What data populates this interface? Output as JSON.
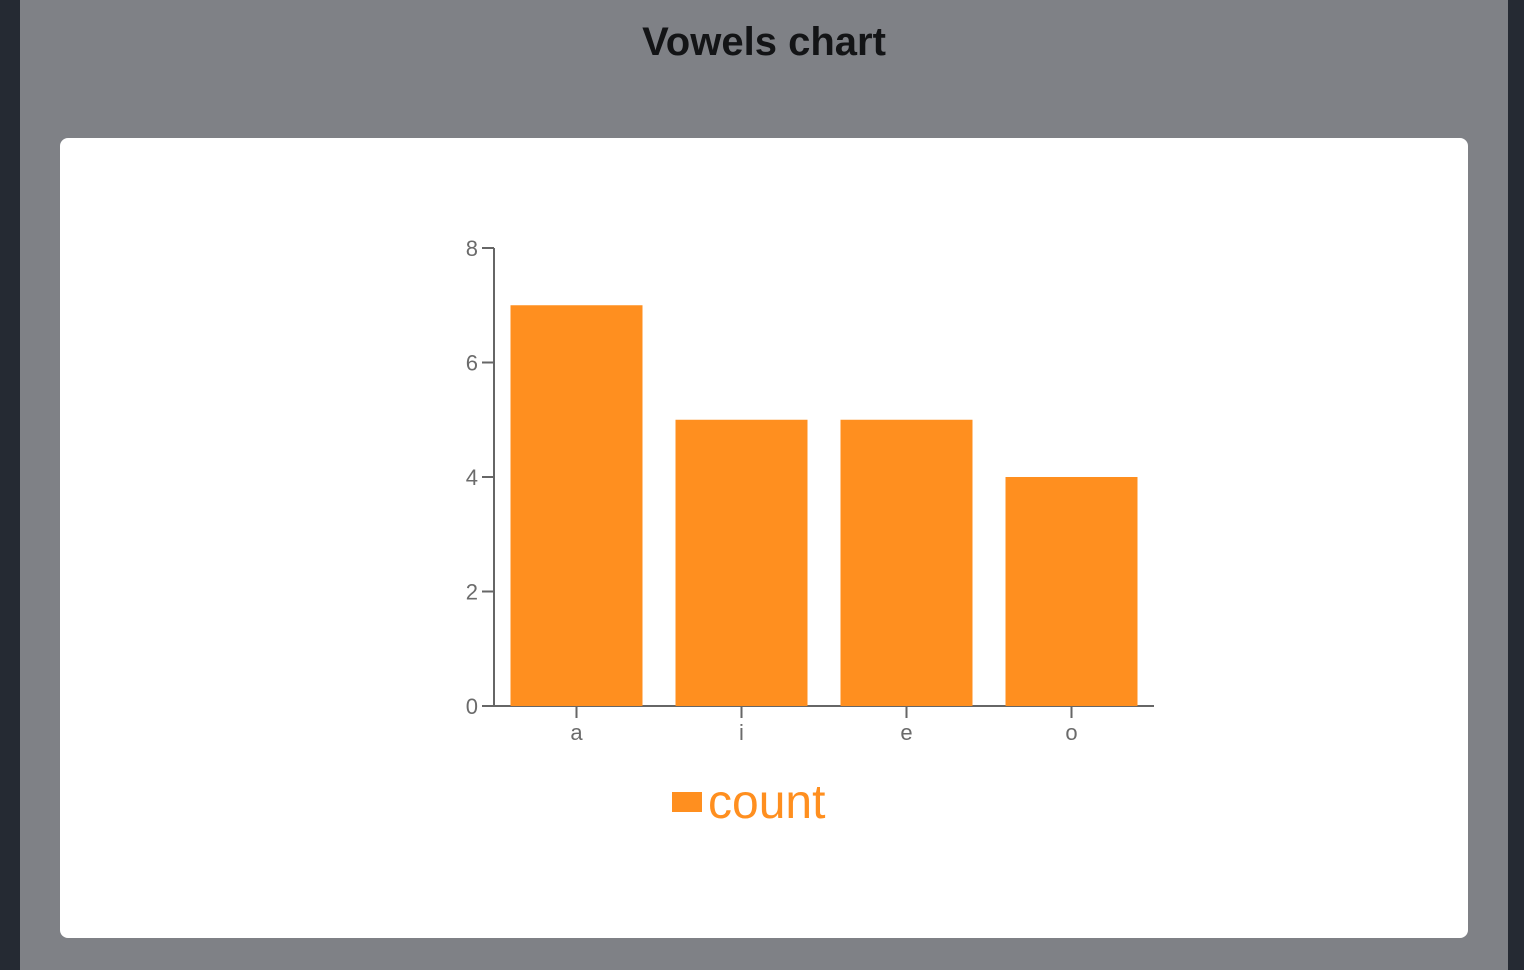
{
  "page": {
    "title": "Vowels chart"
  },
  "chart_data": {
    "type": "bar",
    "categories": [
      "a",
      "i",
      "e",
      "o"
    ],
    "series": [
      {
        "name": "count",
        "values": [
          7,
          5,
          5,
          4
        ]
      }
    ],
    "ylim": [
      0,
      8
    ],
    "yticks": [
      0,
      2,
      4,
      6,
      8
    ],
    "grid": false,
    "legend": "bottom-center",
    "colors": {
      "bar": "#ff8f1f",
      "axis": "#666666",
      "tick_label": "#6b6b6b"
    }
  }
}
